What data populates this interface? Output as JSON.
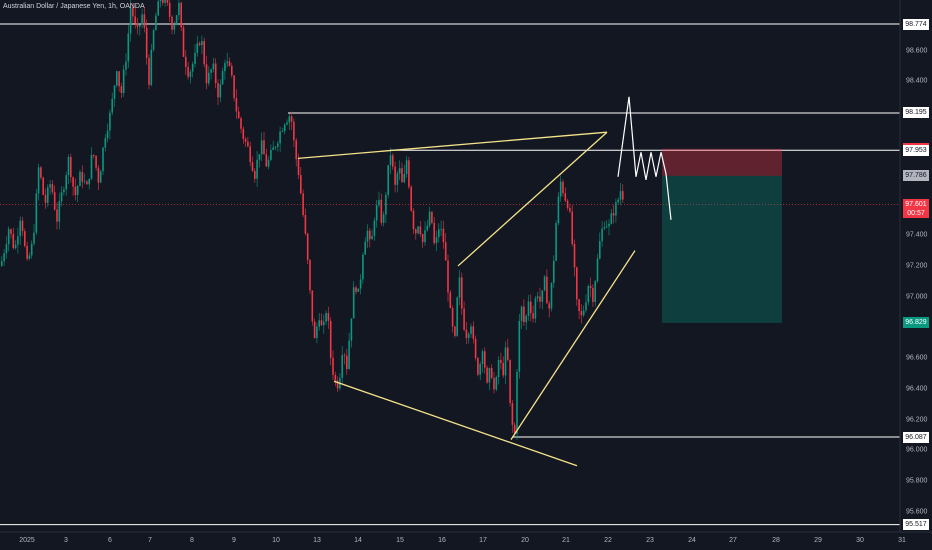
{
  "chart_data": {
    "type": "candlestick",
    "title": "Australian Dollar / Japanese Yen, 1h, OANDA",
    "y_range": [
      95.5,
      98.95
    ],
    "y_ticks": [
      "98.600",
      "98.400",
      "98.200",
      "97.800",
      "97.400",
      "97.200",
      "97.000",
      "96.600",
      "96.400",
      "96.200",
      "96.000",
      "95.800",
      "95.600"
    ],
    "y_tick_values": [
      98.6,
      98.4,
      98.2,
      97.8,
      97.4,
      97.2,
      97.0,
      96.6,
      96.4,
      96.2,
      96.0,
      95.8,
      95.6
    ],
    "x_labels": [
      "2025",
      "3",
      "6",
      "7",
      "8",
      "9",
      "10",
      "13",
      "14",
      "15",
      "16",
      "17",
      "20",
      "21",
      "22",
      "23",
      "24",
      "27",
      "28",
      "29",
      "30",
      "31"
    ],
    "x_label_pos": [
      27,
      66,
      110,
      150,
      192,
      234,
      276,
      317,
      358,
      400,
      442,
      483,
      525,
      566,
      608,
      650,
      692,
      733,
      776,
      818,
      860,
      902
    ],
    "price_labels": [
      {
        "text": "98.774",
        "value": 98.774,
        "bg": "#ffffff",
        "fg": "#131722"
      },
      {
        "text": "98.195",
        "value": 98.195,
        "bg": "#ffffff",
        "fg": "#131722"
      },
      {
        "text": "97.962",
        "value": 97.962,
        "bg": "#f23645",
        "fg": "#ffffff"
      },
      {
        "text": "97.953",
        "value": 97.953,
        "bg": "#ffffff",
        "fg": "#131722"
      },
      {
        "text": "97.786",
        "value": 97.786,
        "bg": "#b2b5be",
        "fg": "#131722"
      },
      {
        "text": "97.601",
        "value": 97.601,
        "bg": "#f23645",
        "fg": "#ffffff",
        "sub": "00:57"
      },
      {
        "text": "96.829",
        "value": 96.829,
        "bg": "#089981",
        "fg": "#ffffff"
      },
      {
        "text": "96.087",
        "value": 96.087,
        "bg": "#ffffff",
        "fg": "#131722"
      },
      {
        "text": "95.517",
        "value": 95.517,
        "bg": "#ffffff",
        "fg": "#131722"
      }
    ],
    "horizontal_levels": [
      98.774,
      98.195,
      97.953,
      96.087,
      95.517
    ],
    "current_price": 97.601,
    "position": {
      "entry": 97.786,
      "stop": 97.962,
      "target": 96.829
    },
    "price_path": [
      [
        0,
        97.2
      ],
      [
        8,
        97.45
      ],
      [
        14,
        97.3
      ],
      [
        20,
        97.55
      ],
      [
        26,
        97.2
      ],
      [
        32,
        97.35
      ],
      [
        38,
        97.85
      ],
      [
        44,
        97.6
      ],
      [
        50,
        97.75
      ],
      [
        56,
        97.5
      ],
      [
        62,
        97.7
      ],
      [
        68,
        97.9
      ],
      [
        74,
        97.65
      ],
      [
        80,
        97.8
      ],
      [
        86,
        97.7
      ],
      [
        92,
        97.95
      ],
      [
        98,
        97.75
      ],
      [
        104,
        98.05
      ],
      [
        110,
        98.2
      ],
      [
        116,
        98.5
      ],
      [
        120,
        98.3
      ],
      [
        126,
        98.6
      ],
      [
        130,
        98.9
      ],
      [
        136,
        98.7
      ],
      [
        142,
        98.85
      ],
      [
        148,
        98.4
      ],
      [
        154,
        98.8
      ],
      [
        160,
        98.95
      ],
      [
        166,
        98.9
      ],
      [
        172,
        98.75
      ],
      [
        178,
        98.9
      ],
      [
        182,
        98.6
      ],
      [
        188,
        98.45
      ],
      [
        194,
        98.55
      ],
      [
        200,
        98.7
      ],
      [
        206,
        98.4
      ],
      [
        212,
        98.5
      ],
      [
        218,
        98.3
      ],
      [
        224,
        98.55
      ],
      [
        230,
        98.45
      ],
      [
        236,
        98.2
      ],
      [
        242,
        98.05
      ],
      [
        248,
        97.95
      ],
      [
        254,
        97.8
      ],
      [
        260,
        98.0
      ],
      [
        266,
        97.85
      ],
      [
        272,
        97.95
      ],
      [
        278,
        98.05
      ],
      [
        284,
        98.15
      ],
      [
        290,
        98.19
      ],
      [
        294,
        97.95
      ],
      [
        298,
        97.8
      ],
      [
        302,
        97.55
      ],
      [
        306,
        97.3
      ],
      [
        310,
        96.95
      ],
      [
        314,
        96.7
      ],
      [
        318,
        96.9
      ],
      [
        322,
        96.75
      ],
      [
        326,
        96.95
      ],
      [
        330,
        96.6
      ],
      [
        334,
        96.45
      ],
      [
        338,
        96.43
      ],
      [
        342,
        96.7
      ],
      [
        346,
        96.55
      ],
      [
        350,
        96.85
      ],
      [
        354,
        97.1
      ],
      [
        358,
        97.0
      ],
      [
        362,
        97.3
      ],
      [
        366,
        97.45
      ],
      [
        370,
        97.3
      ],
      [
        374,
        97.55
      ],
      [
        378,
        97.6
      ],
      [
        382,
        97.45
      ],
      [
        386,
        97.75
      ],
      [
        390,
        97.95
      ],
      [
        394,
        97.7
      ],
      [
        398,
        97.85
      ],
      [
        402,
        97.7
      ],
      [
        406,
        97.9
      ],
      [
        410,
        97.6
      ],
      [
        414,
        97.4
      ],
      [
        418,
        97.5
      ],
      [
        422,
        97.35
      ],
      [
        426,
        97.45
      ],
      [
        430,
        97.55
      ],
      [
        434,
        97.3
      ],
      [
        438,
        97.45
      ],
      [
        442,
        97.4
      ],
      [
        446,
        97.15
      ],
      [
        450,
        96.85
      ],
      [
        454,
        96.7
      ],
      [
        458,
        97.15
      ],
      [
        462,
        96.85
      ],
      [
        466,
        96.75
      ],
      [
        470,
        96.85
      ],
      [
        474,
        96.6
      ],
      [
        478,
        96.5
      ],
      [
        482,
        96.7
      ],
      [
        486,
        96.4
      ],
      [
        490,
        96.55
      ],
      [
        494,
        96.35
      ],
      [
        498,
        96.6
      ],
      [
        502,
        96.5
      ],
      [
        506,
        96.7
      ],
      [
        510,
        96.2
      ],
      [
        514,
        96.1
      ],
      [
        517,
        96.7
      ],
      [
        520,
        96.95
      ],
      [
        524,
        96.8
      ],
      [
        528,
        97.0
      ],
      [
        532,
        96.85
      ],
      [
        536,
        97.05
      ],
      [
        540,
        96.95
      ],
      [
        544,
        97.1
      ],
      [
        548,
        96.9
      ],
      [
        552,
        97.15
      ],
      [
        556,
        97.55
      ],
      [
        560,
        97.75
      ],
      [
        564,
        97.65
      ],
      [
        568,
        97.6
      ],
      [
        572,
        97.3
      ],
      [
        576,
        96.95
      ],
      [
        580,
        96.85
      ],
      [
        584,
        96.95
      ],
      [
        588,
        97.1
      ],
      [
        592,
        97.0
      ],
      [
        596,
        97.2
      ],
      [
        600,
        97.4
      ],
      [
        604,
        97.5
      ],
      [
        608,
        97.45
      ],
      [
        612,
        97.55
      ],
      [
        616,
        97.6
      ],
      [
        620,
        97.7
      ],
      [
        624,
        97.62
      ]
    ],
    "drawings": {
      "support_lines": [
        [
          [
            334,
            96.45
          ],
          [
            577,
            95.9
          ]
        ],
        [
          [
            298,
            97.9
          ],
          [
            607,
            98.07
          ]
        ],
        [
          [
            458,
            97.2
          ],
          [
            607,
            98.07
          ]
        ],
        [
          [
            511,
            96.07
          ],
          [
            635,
            97.3
          ]
        ]
      ],
      "projection": [
        [
          618,
          97.78
        ],
        [
          629,
          98.3
        ],
        [
          636,
          97.78
        ],
        [
          641,
          97.94
        ],
        [
          646,
          97.76
        ],
        [
          651,
          97.94
        ],
        [
          656,
          97.78
        ],
        [
          661,
          97.94
        ],
        [
          666,
          97.8
        ],
        [
          671,
          97.5
        ]
      ]
    },
    "grid": false,
    "legend": "none"
  }
}
